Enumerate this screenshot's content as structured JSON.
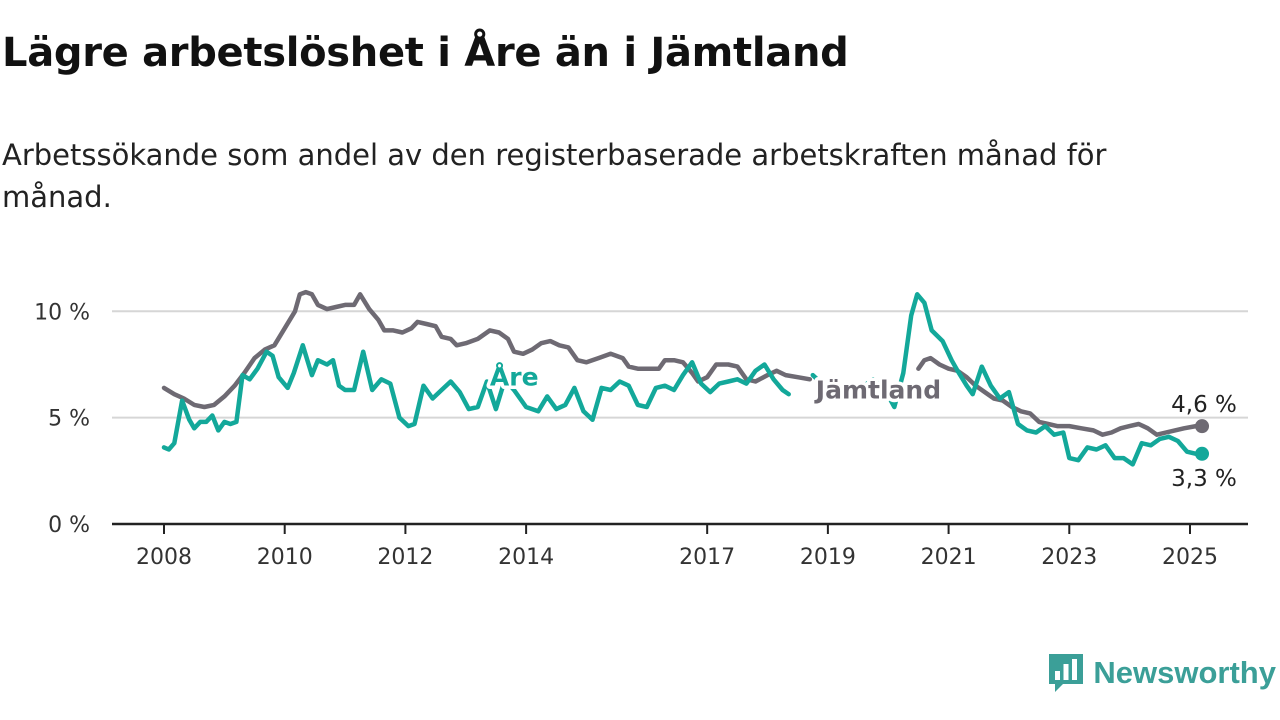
{
  "title": "Lägre arbetslöshet i Åre än i Jämtland",
  "subtitle": "Arbetssökande som andel av den registerbaserade arbetskraften månad för månad.",
  "brand": {
    "name": "Newsworthy",
    "color": "#3b9f98",
    "icon": "bar-chart-logo-icon"
  },
  "chart_data": {
    "type": "line",
    "title": "Lägre arbetslöshet i Åre än i Jämtland",
    "subtitle": "Arbetssökande som andel av den registerbaserade arbetskraften månad för månad.",
    "xlabel": "",
    "ylabel": "",
    "ylim": [
      0,
      11
    ],
    "xlim": [
      2007.7,
      2026.0
    ],
    "grid": true,
    "legend": "inline labels",
    "y_ticks": [
      {
        "value": 0,
        "label": "0 %"
      },
      {
        "value": 5,
        "label": "5 %"
      },
      {
        "value": 10,
        "label": "10 %"
      }
    ],
    "x_ticks": [
      {
        "value": 2008,
        "label": "2008"
      },
      {
        "value": 2010,
        "label": "2010"
      },
      {
        "value": 2012,
        "label": "2012"
      },
      {
        "value": 2014,
        "label": "2014"
      },
      {
        "value": 2017,
        "label": "2017"
      },
      {
        "value": 2019,
        "label": "2019"
      },
      {
        "value": 2021,
        "label": "2021"
      },
      {
        "value": 2023,
        "label": "2023"
      },
      {
        "value": 2025,
        "label": "2025"
      }
    ],
    "series": [
      {
        "name": "Jämtland",
        "color": "#6e6a73",
        "end_label": "4,6 %",
        "points": [
          [
            2008.0,
            6.4
          ],
          [
            2008.17,
            6.1
          ],
          [
            2008.33,
            5.9
          ],
          [
            2008.5,
            5.6
          ],
          [
            2008.67,
            5.5
          ],
          [
            2008.83,
            5.6
          ],
          [
            2009.0,
            6.0
          ],
          [
            2009.17,
            6.5
          ],
          [
            2009.33,
            7.1
          ],
          [
            2009.5,
            7.8
          ],
          [
            2009.67,
            8.2
          ],
          [
            2009.83,
            8.4
          ],
          [
            2010.0,
            9.2
          ],
          [
            2010.17,
            10.0
          ],
          [
            2010.25,
            10.8
          ],
          [
            2010.35,
            10.9
          ],
          [
            2010.45,
            10.8
          ],
          [
            2010.55,
            10.3
          ],
          [
            2010.7,
            10.1
          ],
          [
            2010.85,
            10.2
          ],
          [
            2011.0,
            10.3
          ],
          [
            2011.15,
            10.3
          ],
          [
            2011.25,
            10.8
          ],
          [
            2011.4,
            10.1
          ],
          [
            2011.55,
            9.6
          ],
          [
            2011.65,
            9.1
          ],
          [
            2011.8,
            9.1
          ],
          [
            2011.95,
            9.0
          ],
          [
            2012.1,
            9.2
          ],
          [
            2012.2,
            9.5
          ],
          [
            2012.35,
            9.4
          ],
          [
            2012.5,
            9.3
          ],
          [
            2012.6,
            8.8
          ],
          [
            2012.75,
            8.7
          ],
          [
            2012.85,
            8.4
          ],
          [
            2013.0,
            8.5
          ],
          [
            2013.2,
            8.7
          ],
          [
            2013.4,
            9.1
          ],
          [
            2013.55,
            9.0
          ],
          [
            2013.7,
            8.7
          ],
          [
            2013.8,
            8.1
          ],
          [
            2013.95,
            8.0
          ],
          [
            2014.1,
            8.2
          ],
          [
            2014.25,
            8.5
          ],
          [
            2014.4,
            8.6
          ],
          [
            2014.55,
            8.4
          ],
          [
            2014.7,
            8.3
          ],
          [
            2014.85,
            7.7
          ],
          [
            2015.0,
            7.6
          ],
          [
            2015.2,
            7.8
          ],
          [
            2015.4,
            8.0
          ],
          [
            2015.6,
            7.8
          ],
          [
            2015.7,
            7.4
          ],
          [
            2015.85,
            7.3
          ],
          [
            2016.0,
            7.3
          ],
          [
            2016.2,
            7.3
          ],
          [
            2016.3,
            7.7
          ],
          [
            2016.45,
            7.7
          ],
          [
            2016.6,
            7.6
          ],
          [
            2016.75,
            7.1
          ],
          [
            2016.85,
            6.7
          ],
          [
            2017.0,
            6.9
          ],
          [
            2017.15,
            7.5
          ],
          [
            2017.35,
            7.5
          ],
          [
            2017.5,
            7.4
          ],
          [
            2017.65,
            6.8
          ],
          [
            2017.8,
            6.7
          ],
          [
            2018.0,
            7.0
          ],
          [
            2018.15,
            7.2
          ],
          [
            2018.3,
            7.0
          ],
          [
            2018.5,
            6.9
          ],
          [
            2018.7,
            6.8
          ]
        ],
        "points_b": [
          [
            2020.5,
            7.3
          ],
          [
            2020.6,
            7.7
          ],
          [
            2020.7,
            7.8
          ],
          [
            2020.85,
            7.5
          ],
          [
            2021.0,
            7.3
          ],
          [
            2021.15,
            7.2
          ],
          [
            2021.3,
            6.9
          ],
          [
            2021.45,
            6.5
          ],
          [
            2021.6,
            6.2
          ],
          [
            2021.75,
            5.9
          ],
          [
            2021.9,
            5.8
          ],
          [
            2022.05,
            5.5
          ],
          [
            2022.2,
            5.3
          ],
          [
            2022.35,
            5.2
          ],
          [
            2022.5,
            4.8
          ],
          [
            2022.65,
            4.7
          ],
          [
            2022.8,
            4.6
          ],
          [
            2023.0,
            4.6
          ],
          [
            2023.2,
            4.5
          ],
          [
            2023.4,
            4.4
          ],
          [
            2023.55,
            4.2
          ],
          [
            2023.7,
            4.3
          ],
          [
            2023.85,
            4.5
          ],
          [
            2024.0,
            4.6
          ],
          [
            2024.15,
            4.7
          ],
          [
            2024.3,
            4.5
          ],
          [
            2024.45,
            4.2
          ],
          [
            2024.6,
            4.3
          ],
          [
            2024.75,
            4.4
          ],
          [
            2024.9,
            4.5
          ],
          [
            2025.1,
            4.6
          ]
        ]
      },
      {
        "name": "Åre",
        "color": "#13a89a",
        "end_label": "3,3 %",
        "points": [
          [
            2008.0,
            3.6
          ],
          [
            2008.08,
            3.5
          ],
          [
            2008.17,
            3.8
          ],
          [
            2008.3,
            5.8
          ],
          [
            2008.42,
            4.9
          ],
          [
            2008.5,
            4.5
          ],
          [
            2008.6,
            4.8
          ],
          [
            2008.7,
            4.8
          ],
          [
            2008.8,
            5.1
          ],
          [
            2008.9,
            4.4
          ],
          [
            2009.0,
            4.8
          ],
          [
            2009.1,
            4.7
          ],
          [
            2009.2,
            4.8
          ],
          [
            2009.3,
            7.0
          ],
          [
            2009.42,
            6.8
          ],
          [
            2009.55,
            7.3
          ],
          [
            2009.7,
            8.1
          ],
          [
            2009.8,
            7.9
          ],
          [
            2009.9,
            6.9
          ],
          [
            2010.05,
            6.4
          ],
          [
            2010.15,
            7.1
          ],
          [
            2010.3,
            8.4
          ],
          [
            2010.45,
            7.0
          ],
          [
            2010.55,
            7.7
          ],
          [
            2010.7,
            7.5
          ],
          [
            2010.8,
            7.7
          ],
          [
            2010.9,
            6.5
          ],
          [
            2011.0,
            6.3
          ],
          [
            2011.15,
            6.3
          ],
          [
            2011.3,
            8.1
          ],
          [
            2011.45,
            6.3
          ],
          [
            2011.6,
            6.8
          ],
          [
            2011.75,
            6.6
          ],
          [
            2011.9,
            5.0
          ],
          [
            2012.05,
            4.6
          ],
          [
            2012.15,
            4.7
          ],
          [
            2012.3,
            6.5
          ],
          [
            2012.45,
            5.9
          ],
          [
            2012.6,
            6.3
          ],
          [
            2012.75,
            6.7
          ],
          [
            2012.9,
            6.2
          ],
          [
            2013.05,
            5.4
          ],
          [
            2013.2,
            5.5
          ],
          [
            2013.35,
            6.7
          ],
          [
            2013.5,
            5.4
          ],
          [
            2013.65,
            6.8
          ],
          [
            2013.8,
            6.3
          ],
          [
            2014.0,
            5.5
          ],
          [
            2014.2,
            5.3
          ],
          [
            2014.35,
            6.0
          ],
          [
            2014.5,
            5.4
          ],
          [
            2014.65,
            5.6
          ],
          [
            2014.8,
            6.4
          ],
          [
            2014.95,
            5.3
          ],
          [
            2015.1,
            4.9
          ],
          [
            2015.25,
            6.4
          ],
          [
            2015.4,
            6.3
          ],
          [
            2015.55,
            6.7
          ],
          [
            2015.7,
            6.5
          ],
          [
            2015.85,
            5.6
          ],
          [
            2016.0,
            5.5
          ],
          [
            2016.15,
            6.4
          ],
          [
            2016.3,
            6.5
          ],
          [
            2016.45,
            6.3
          ],
          [
            2016.6,
            7.0
          ],
          [
            2016.75,
            7.6
          ],
          [
            2016.9,
            6.6
          ],
          [
            2017.05,
            6.2
          ],
          [
            2017.2,
            6.6
          ],
          [
            2017.35,
            6.7
          ],
          [
            2017.5,
            6.8
          ],
          [
            2017.65,
            6.6
          ],
          [
            2017.8,
            7.2
          ],
          [
            2017.95,
            7.5
          ],
          [
            2018.1,
            6.8
          ],
          [
            2018.25,
            6.3
          ],
          [
            2018.35,
            6.1
          ]
        ],
        "points_b": [
          [
            2018.75,
            7.0
          ],
          [
            2018.9,
            6.6
          ],
          [
            2019.15,
            6.3
          ],
          [
            2019.35,
            6.1
          ],
          [
            2019.55,
            6.4
          ],
          [
            2019.75,
            6.8
          ],
          [
            2019.95,
            6.3
          ],
          [
            2020.1,
            5.5
          ],
          [
            2020.25,
            7.1
          ],
          [
            2020.38,
            9.8
          ],
          [
            2020.48,
            10.8
          ],
          [
            2020.6,
            10.4
          ],
          [
            2020.72,
            9.1
          ],
          [
            2020.9,
            8.6
          ],
          [
            2021.05,
            7.7
          ],
          [
            2021.15,
            7.2
          ],
          [
            2021.3,
            6.5
          ],
          [
            2021.4,
            6.1
          ],
          [
            2021.55,
            7.4
          ],
          [
            2021.7,
            6.5
          ],
          [
            2021.85,
            5.9
          ],
          [
            2022.0,
            6.2
          ],
          [
            2022.15,
            4.7
          ],
          [
            2022.3,
            4.4
          ],
          [
            2022.45,
            4.3
          ],
          [
            2022.6,
            4.6
          ],
          [
            2022.75,
            4.2
          ],
          [
            2022.9,
            4.3
          ],
          [
            2023.0,
            3.1
          ],
          [
            2023.15,
            3.0
          ],
          [
            2023.3,
            3.6
          ],
          [
            2023.45,
            3.5
          ],
          [
            2023.6,
            3.7
          ],
          [
            2023.75,
            3.1
          ],
          [
            2023.9,
            3.1
          ],
          [
            2024.05,
            2.8
          ],
          [
            2024.2,
            3.8
          ],
          [
            2024.35,
            3.7
          ],
          [
            2024.5,
            4.0
          ],
          [
            2024.65,
            4.1
          ],
          [
            2024.8,
            3.9
          ],
          [
            2024.95,
            3.4
          ],
          [
            2025.1,
            3.3
          ]
        ]
      }
    ],
    "annotations": [
      {
        "text": "Åre",
        "series": "Åre",
        "at": [
          2013.4,
          6.5
        ]
      },
      {
        "text": "Jämtland",
        "series": "Jämtland",
        "at": [
          2018.8,
          5.9
        ]
      }
    ]
  }
}
